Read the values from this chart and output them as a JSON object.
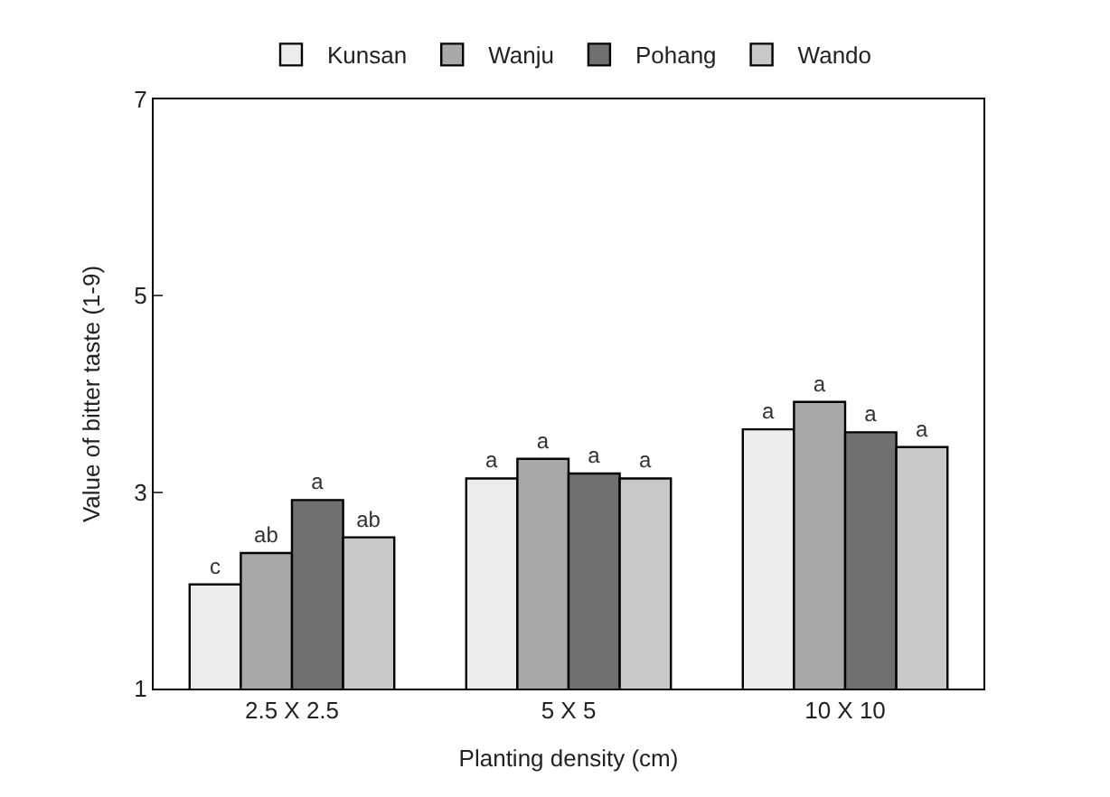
{
  "chart_data": {
    "type": "bar",
    "xlabel": "Planting density (cm)",
    "ylabel": "Value of bitter taste (1-9)",
    "categories": [
      "2.5 X 2.5",
      "5 X 5",
      "10 X 10"
    ],
    "series": [
      {
        "name": "Kunsan",
        "color": "#ececec",
        "values": [
          2.06,
          3.14,
          3.64
        ],
        "value_labels": [
          "c",
          "a",
          "a"
        ]
      },
      {
        "name": "Wanju",
        "color": "#a8a8a8",
        "values": [
          2.38,
          3.34,
          3.92
        ],
        "value_labels": [
          "ab",
          "a",
          "a"
        ]
      },
      {
        "name": "Pohang",
        "color": "#707070",
        "values": [
          2.92,
          3.19,
          3.61
        ],
        "value_labels": [
          "a",
          "a",
          "a"
        ]
      },
      {
        "name": "Wando",
        "color": "#c8c8c8",
        "values": [
          2.54,
          3.14,
          3.46
        ],
        "value_labels": [
          "ab",
          "a",
          "a"
        ]
      }
    ],
    "ylim": [
      1,
      7
    ],
    "yticks": [
      1,
      3,
      5,
      7
    ],
    "legend": "top"
  }
}
